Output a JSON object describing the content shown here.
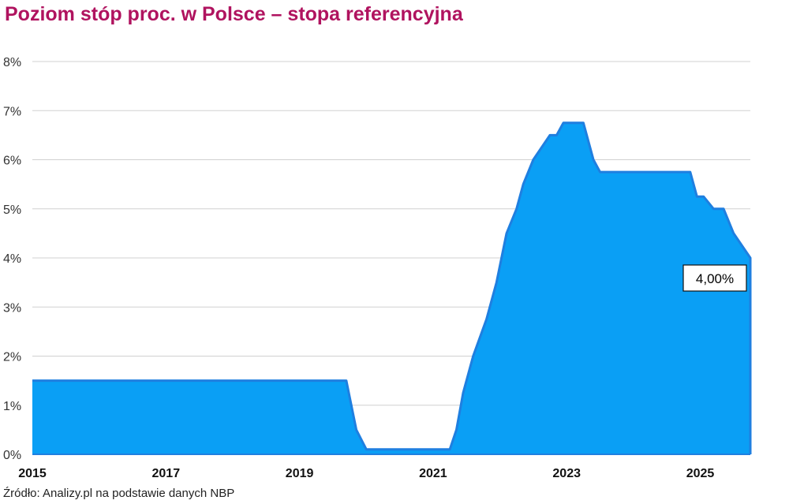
{
  "chart_data": {
    "type": "area",
    "title": "Poziom stóp proc. w Polsce – stopa referencyjna",
    "source": "Źródło: Analizy.pl na podstawie danych NBP",
    "x_tick_labels": [
      "2015",
      "2017",
      "2019",
      "2021",
      "2023",
      "2025"
    ],
    "x_ticks": [
      2015,
      2017,
      2019,
      2021,
      2023,
      2025
    ],
    "xlim": [
      2015,
      2025.75
    ],
    "y_tick_labels": [
      "0%",
      "1%",
      "2%",
      "3%",
      "4%",
      "5%",
      "6%",
      "7%",
      "8%"
    ],
    "y_ticks": [
      0,
      1,
      2,
      3,
      4,
      5,
      6,
      7,
      8
    ],
    "ylim": [
      0,
      8
    ],
    "grid": true,
    "fill_color": "#0a9ff5",
    "line_color": "#1f7fe0",
    "annotation": {
      "text": "4,00%",
      "x": 2025.75,
      "y": 4.0
    },
    "series": [
      {
        "x": [
          2015.0,
          2019.7,
          2019.85,
          2020.0,
          2021.25,
          2021.35,
          2021.45,
          2021.6,
          2021.8,
          2021.95,
          2022.1,
          2022.25,
          2022.35,
          2022.5,
          2022.75,
          2022.85,
          2022.95,
          2023.25,
          2023.4,
          2023.5,
          2024.85,
          2024.95,
          2025.05,
          2025.2,
          2025.35,
          2025.5,
          2025.75
        ],
        "y": [
          1.5,
          1.5,
          0.5,
          0.1,
          0.1,
          0.5,
          1.25,
          2.0,
          2.75,
          3.5,
          4.5,
          5.0,
          5.5,
          6.0,
          6.5,
          6.5,
          6.75,
          6.75,
          6.0,
          5.75,
          5.75,
          5.25,
          5.25,
          5.0,
          5.0,
          4.5,
          4.0
        ]
      }
    ]
  }
}
